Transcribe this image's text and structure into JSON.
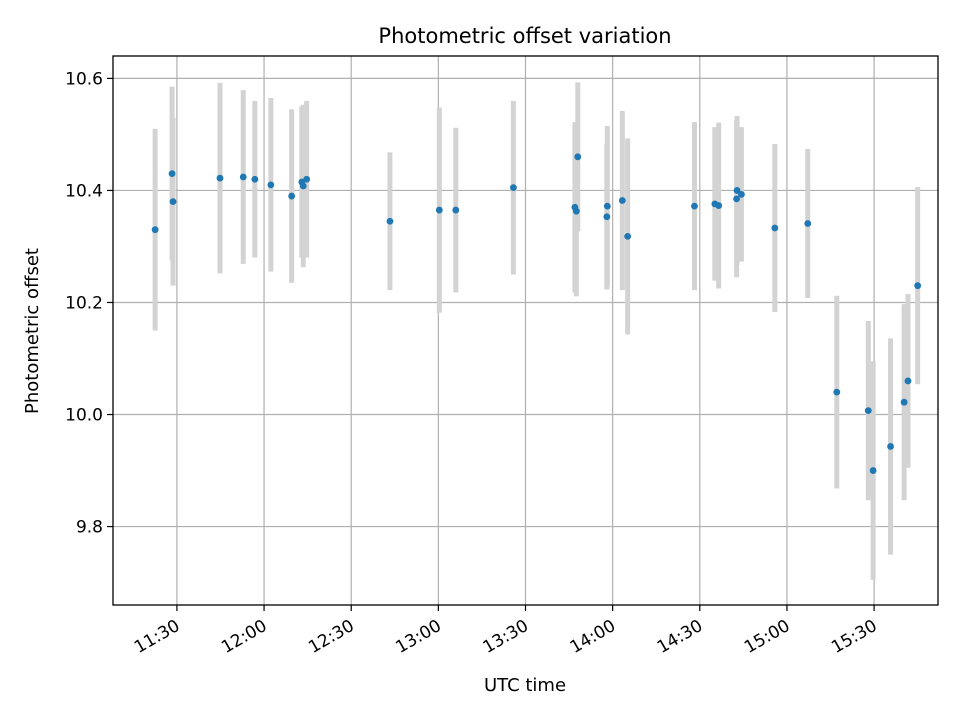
{
  "chart_data": {
    "type": "scatter",
    "title": "Photometric offset variation",
    "xlabel": "UTC time",
    "ylabel": "Photometric offset",
    "x_ticks": [
      "11:30",
      "12:00",
      "12:30",
      "13:00",
      "13:30",
      "14:00",
      "14:30",
      "15:00",
      "15:30"
    ],
    "y_ticks": [
      "9.8",
      "10.0",
      "10.2",
      "10.4",
      "10.6"
    ],
    "xlim": [
      "11:08",
      "15:52"
    ],
    "ylim": [
      9.66,
      10.64
    ],
    "grid": true,
    "colors": {
      "marker": "#1f77b4",
      "errorbar": "#d3d3d3",
      "grid": "#b0b0b0"
    },
    "points": [
      {
        "x": "11:22:30",
        "y": 10.33,
        "err": 0.18
      },
      {
        "x": "11:28:20",
        "y": 10.43,
        "err": 0.155
      },
      {
        "x": "11:28:40",
        "y": 10.38,
        "err": 0.15
      },
      {
        "x": "11:44:50",
        "y": 10.422,
        "err": 0.17
      },
      {
        "x": "11:52:50",
        "y": 10.424,
        "err": 0.155
      },
      {
        "x": "11:56:50",
        "y": 10.42,
        "err": 0.14
      },
      {
        "x": "12:02:20",
        "y": 10.41,
        "err": 0.155
      },
      {
        "x": "12:09:30",
        "y": 10.39,
        "err": 0.155
      },
      {
        "x": "12:13:00",
        "y": 10.415,
        "err": 0.135
      },
      {
        "x": "12:13:30",
        "y": 10.408,
        "err": 0.145
      },
      {
        "x": "12:14:40",
        "y": 10.42,
        "err": 0.14
      },
      {
        "x": "12:43:20",
        "y": 10.345,
        "err": 0.123
      },
      {
        "x": "13:00:20",
        "y": 10.365,
        "err": 0.183
      },
      {
        "x": "13:06:00",
        "y": 10.365,
        "err": 0.147
      },
      {
        "x": "13:25:50",
        "y": 10.405,
        "err": 0.155
      },
      {
        "x": "13:47:00",
        "y": 10.37,
        "err": 0.152
      },
      {
        "x": "13:47:30",
        "y": 10.363,
        "err": 0.152
      },
      {
        "x": "13:48:00",
        "y": 10.46,
        "err": 0.133
      },
      {
        "x": "13:58:10",
        "y": 10.372,
        "err": 0.143
      },
      {
        "x": "13:58:00",
        "y": 10.353,
        "err": 0.13
      },
      {
        "x": "14:03:20",
        "y": 10.382,
        "err": 0.16
      },
      {
        "x": "14:05:10",
        "y": 10.318,
        "err": 0.175
      },
      {
        "x": "14:28:10",
        "y": 10.372,
        "err": 0.15
      },
      {
        "x": "14:35:10",
        "y": 10.376,
        "err": 0.137
      },
      {
        "x": "14:36:30",
        "y": 10.373,
        "err": 0.148
      },
      {
        "x": "14:42:40",
        "y": 10.385,
        "err": 0.14
      },
      {
        "x": "14:42:50",
        "y": 10.4,
        "err": 0.133
      },
      {
        "x": "14:44:20",
        "y": 10.393,
        "err": 0.12
      },
      {
        "x": "14:55:50",
        "y": 10.333,
        "err": 0.15
      },
      {
        "x": "15:07:10",
        "y": 10.341,
        "err": 0.133
      },
      {
        "x": "15:17:10",
        "y": 10.04,
        "err": 0.172
      },
      {
        "x": "15:28:00",
        "y": 10.007,
        "err": 0.16
      },
      {
        "x": "15:29:40",
        "y": 9.9,
        "err": 0.195
      },
      {
        "x": "15:35:40",
        "y": 9.943,
        "err": 0.193
      },
      {
        "x": "15:40:20",
        "y": 10.022,
        "err": 0.175
      },
      {
        "x": "15:41:40",
        "y": 10.06,
        "err": 0.155
      },
      {
        "x": "15:45:00",
        "y": 10.23,
        "err": 0.176
      }
    ]
  }
}
